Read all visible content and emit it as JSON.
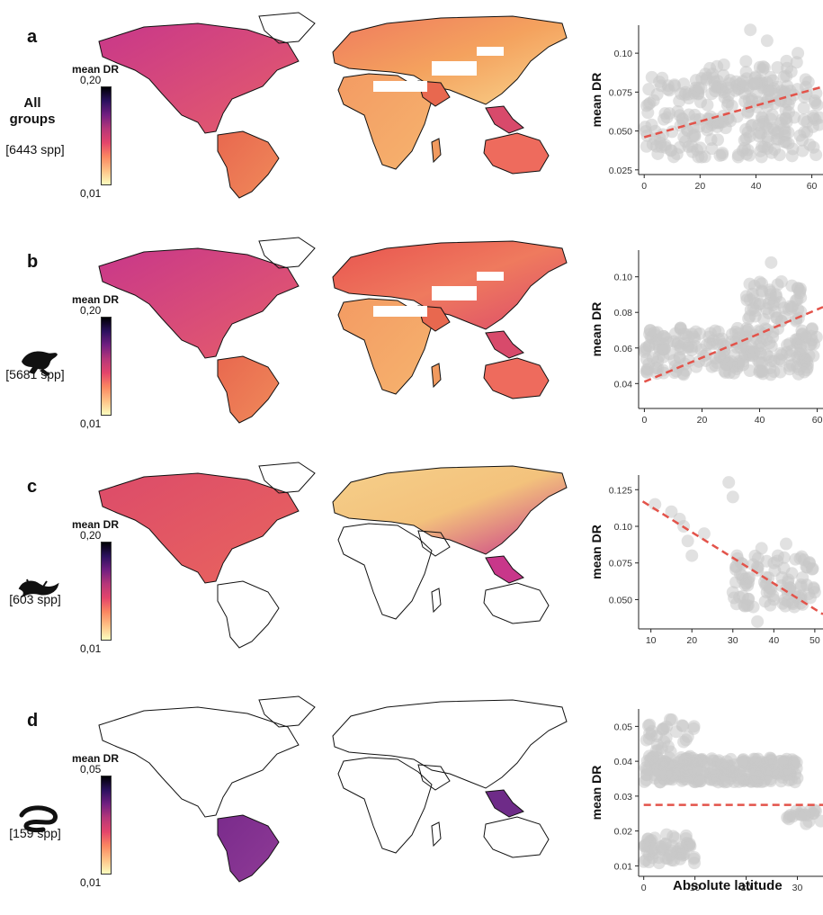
{
  "colorbar_title": "mean DR",
  "x_axis_label": "Absolute latitude",
  "y_axis_label": "mean DR",
  "colors": {
    "point": "#c8c8c8",
    "trend": "#e3534a",
    "colorbar": [
      "#fcfdbf",
      "#fec287",
      "#fb8761",
      "#e4456b",
      "#b73779",
      "#721f81",
      "#2c115f",
      "#000004"
    ]
  },
  "panels": [
    {
      "letter": "a",
      "group": [
        "All",
        "groups"
      ],
      "icon": "all-groups",
      "spp": "[6443 spp]",
      "cbar_max": "0,20",
      "cbar_min": "0,01"
    },
    {
      "letter": "b",
      "group": [],
      "icon": "frog-icon",
      "spp": "[5681 spp]",
      "cbar_max": "0,20",
      "cbar_min": "0,01"
    },
    {
      "letter": "c",
      "group": [],
      "icon": "salamander-icon",
      "spp": "[603 spp]",
      "cbar_max": "0,20",
      "cbar_min": "0,01"
    },
    {
      "letter": "d",
      "group": [],
      "icon": "caecilian-icon",
      "spp": "[159 spp]",
      "cbar_max": "0,05",
      "cbar_min": "0,01"
    }
  ],
  "chart_data": [
    {
      "type": "scatter",
      "panel": "a",
      "xlabel": "",
      "ylabel": "mean DR",
      "x_ticks": [
        0,
        20,
        40,
        60
      ],
      "y_ticks": [
        0.025,
        0.05,
        0.075,
        0.1
      ],
      "xlim": [
        -2,
        64
      ],
      "ylim": [
        0.022,
        0.118
      ],
      "trend": {
        "x": [
          0,
          63
        ],
        "y": [
          0.046,
          0.078
        ]
      },
      "clusters": [
        {
          "x": [
            0,
            63
          ],
          "y": [
            0.033,
            0.085
          ],
          "n": 260
        },
        {
          "x": [
            18,
            55
          ],
          "y": [
            0.07,
            0.095
          ],
          "n": 40
        }
      ],
      "outliers": [
        {
          "x": 38,
          "y": 0.115
        },
        {
          "x": 44,
          "y": 0.108
        },
        {
          "x": 55,
          "y": 0.1
        }
      ]
    },
    {
      "type": "scatter",
      "panel": "b",
      "xlabel": "",
      "ylabel": "mean DR",
      "x_ticks": [
        0,
        20,
        40,
        60
      ],
      "y_ticks": [
        0.04,
        0.06,
        0.08,
        0.1
      ],
      "xlim": [
        -2,
        62
      ],
      "ylim": [
        0.026,
        0.115
      ],
      "trend": {
        "x": [
          0,
          62
        ],
        "y": [
          0.041,
          0.083
        ]
      },
      "clusters": [
        {
          "x": [
            0,
            60
          ],
          "y": [
            0.045,
            0.072
          ],
          "n": 240
        },
        {
          "x": [
            35,
            55
          ],
          "y": [
            0.075,
            0.098
          ],
          "n": 60
        }
      ],
      "outliers": [
        {
          "x": 44,
          "y": 0.108
        }
      ]
    },
    {
      "type": "scatter",
      "panel": "c",
      "xlabel": "",
      "ylabel": "mean DR",
      "x_ticks": [
        10,
        20,
        30,
        40,
        50
      ],
      "y_ticks": [
        0.05,
        0.075,
        0.1,
        0.125
      ],
      "xlim": [
        7,
        52
      ],
      "ylim": [
        0.03,
        0.135
      ],
      "trend": {
        "x": [
          8,
          52
        ],
        "y": [
          0.117,
          0.04
        ]
      },
      "points": [
        [
          11,
          0.115
        ],
        [
          15,
          0.11
        ],
        [
          17,
          0.105
        ],
        [
          18,
          0.1
        ],
        [
          19,
          0.09
        ],
        [
          20,
          0.08
        ],
        [
          23,
          0.095
        ],
        [
          29,
          0.13
        ],
        [
          30,
          0.12
        ],
        [
          31,
          0.08
        ],
        [
          32,
          0.075
        ],
        [
          30,
          0.055
        ],
        [
          34,
          0.065
        ],
        [
          36,
          0.07
        ],
        [
          38,
          0.06
        ],
        [
          40,
          0.075
        ],
        [
          42,
          0.065
        ],
        [
          44,
          0.058
        ],
        [
          46,
          0.052
        ],
        [
          48,
          0.06
        ],
        [
          50,
          0.055
        ],
        [
          35,
          0.045
        ],
        [
          40,
          0.05
        ],
        [
          45,
          0.045
        ],
        [
          37,
          0.085
        ],
        [
          41,
          0.08
        ],
        [
          43,
          0.088
        ],
        [
          47,
          0.065
        ],
        [
          33,
          0.06
        ],
        [
          39,
          0.058
        ],
        [
          36,
          0.035
        ]
      ],
      "clusters": [
        {
          "x": [
            30,
            50
          ],
          "y": [
            0.045,
            0.08
          ],
          "n": 80
        }
      ]
    },
    {
      "type": "scatter",
      "panel": "d",
      "xlabel": "Absolute latitude",
      "ylabel": "mean DR",
      "x_ticks": [
        0,
        10,
        20,
        30
      ],
      "y_ticks": [
        0.01,
        0.02,
        0.03,
        0.04,
        0.05
      ],
      "xlim": [
        -1,
        35
      ],
      "ylim": [
        0.007,
        0.055
      ],
      "trend": {
        "x": [
          0,
          35
        ],
        "y": [
          0.0275,
          0.0275
        ]
      },
      "clusters": [
        {
          "x": [
            0,
            30
          ],
          "y": [
            0.034,
            0.041
          ],
          "n": 260
        },
        {
          "x": [
            0,
            10
          ],
          "y": [
            0.01,
            0.019
          ],
          "n": 60
        },
        {
          "x": [
            0,
            10
          ],
          "y": [
            0.04,
            0.052
          ],
          "n": 40
        },
        {
          "x": [
            28,
            35
          ],
          "y": [
            0.022,
            0.026
          ],
          "n": 20
        }
      ]
    }
  ]
}
